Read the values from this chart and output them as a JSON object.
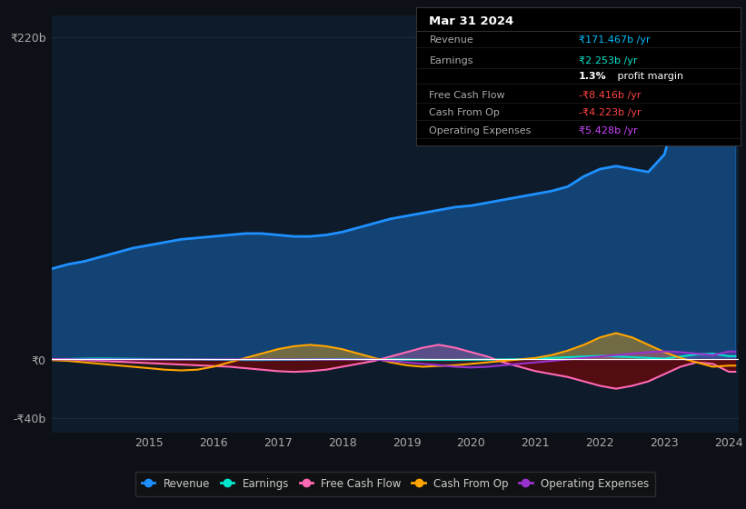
{
  "bg_color": "#0d1117",
  "plot_bg": "#0d1b2a",
  "grid_color": "#1e2d3d",
  "zero_line_color": "#ffffff",
  "years": [
    2013.25,
    2013.5,
    2013.75,
    2014.0,
    2014.25,
    2014.5,
    2014.75,
    2015.0,
    2015.25,
    2015.5,
    2015.75,
    2016.0,
    2016.25,
    2016.5,
    2016.75,
    2017.0,
    2017.25,
    2017.5,
    2017.75,
    2018.0,
    2018.25,
    2018.5,
    2018.75,
    2019.0,
    2019.25,
    2019.5,
    2019.75,
    2020.0,
    2020.25,
    2020.5,
    2020.75,
    2021.0,
    2021.25,
    2021.5,
    2021.75,
    2022.0,
    2022.25,
    2022.5,
    2022.75,
    2023.0,
    2023.25,
    2023.5,
    2023.75,
    2024.0,
    2024.1
  ],
  "revenue": [
    60,
    62,
    65,
    67,
    70,
    73,
    76,
    78,
    80,
    82,
    83,
    84,
    85,
    86,
    86,
    85,
    84,
    84,
    85,
    87,
    90,
    93,
    96,
    98,
    100,
    102,
    104,
    105,
    107,
    109,
    111,
    113,
    115,
    118,
    125,
    130,
    132,
    130,
    128,
    140,
    180,
    220,
    200,
    171,
    171
  ],
  "earnings": [
    0.0,
    0.2,
    0.3,
    0.5,
    0.6,
    0.5,
    0.4,
    0.3,
    0.2,
    0.1,
    0.0,
    -0.2,
    -0.3,
    -0.4,
    -0.4,
    -0.3,
    -0.2,
    0.0,
    0.2,
    0.3,
    0.2,
    0.1,
    0.0,
    -0.1,
    -0.2,
    -0.3,
    -0.3,
    -0.2,
    -0.1,
    0.0,
    0.2,
    0.5,
    1.0,
    1.5,
    2.0,
    2.5,
    2.0,
    1.5,
    1.0,
    0.5,
    2.0,
    3.5,
    4.0,
    2.253,
    2.253
  ],
  "free_cash_flow": [
    0.5,
    0.3,
    0.0,
    -0.5,
    -1.0,
    -1.5,
    -2.0,
    -2.5,
    -3.0,
    -3.5,
    -4.0,
    -4.5,
    -5.0,
    -6.0,
    -7.0,
    -8.0,
    -8.5,
    -8.0,
    -7.0,
    -5.0,
    -3.0,
    -1.0,
    2.0,
    5.0,
    8.0,
    10.0,
    8.0,
    5.0,
    2.0,
    -2.0,
    -5.0,
    -8.0,
    -10.0,
    -12.0,
    -15.0,
    -18.0,
    -20.0,
    -18.0,
    -15.0,
    -10.0,
    -5.0,
    -2.0,
    -3.0,
    -8.416,
    -8.416
  ],
  "cash_from_op": [
    0.0,
    -0.5,
    -1.0,
    -2.0,
    -3.0,
    -4.0,
    -5.0,
    -6.0,
    -7.0,
    -7.5,
    -7.0,
    -5.0,
    -2.0,
    1.0,
    4.0,
    7.0,
    9.0,
    10.0,
    9.0,
    7.0,
    4.0,
    1.0,
    -2.0,
    -4.0,
    -5.0,
    -4.5,
    -4.0,
    -3.0,
    -2.0,
    -1.0,
    0.0,
    1.0,
    3.0,
    6.0,
    10.0,
    15.0,
    18.0,
    15.0,
    10.0,
    5.0,
    1.0,
    -2.0,
    -5.0,
    -4.223,
    -4.223
  ],
  "operating_expenses": [
    0.0,
    0.0,
    0.0,
    0.0,
    0.0,
    0.0,
    0.0,
    0.0,
    0.0,
    0.0,
    0.0,
    0.0,
    0.0,
    0.0,
    0.0,
    0.0,
    0.0,
    0.0,
    0.0,
    0.0,
    0.0,
    0.0,
    -1.0,
    -2.0,
    -3.0,
    -4.0,
    -5.0,
    -5.5,
    -5.0,
    -4.0,
    -3.0,
    -2.0,
    -1.0,
    0.0,
    1.0,
    2.0,
    3.0,
    4.0,
    5.0,
    5.5,
    5.0,
    4.0,
    3.0,
    5.428,
    5.428
  ],
  "revenue_color": "#1e90ff",
  "earnings_color": "#00e5cc",
  "fcf_color": "#ff69b4",
  "cfop_color": "#ffa500",
  "opex_color": "#9932cc",
  "xlim": [
    2013.5,
    2024.15
  ],
  "ylim": [
    -50,
    235
  ],
  "yticks": [
    -40,
    0,
    220
  ],
  "ytick_labels": [
    "-₹40b",
    "₹0",
    "₹220b"
  ],
  "xticks": [
    2015,
    2016,
    2017,
    2018,
    2019,
    2020,
    2021,
    2022,
    2023,
    2024
  ],
  "xtick_labels": [
    "2015",
    "2016",
    "2017",
    "2018",
    "2019",
    "2020",
    "2021",
    "2022",
    "2023",
    "2024"
  ],
  "legend_items": [
    {
      "label": "Revenue",
      "color": "#1e90ff"
    },
    {
      "label": "Earnings",
      "color": "#00e5cc"
    },
    {
      "label": "Free Cash Flow",
      "color": "#ff69b4"
    },
    {
      "label": "Cash From Op",
      "color": "#ffa500"
    },
    {
      "label": "Operating Expenses",
      "color": "#9932cc"
    }
  ],
  "info_box": {
    "date": "Mar 31 2024",
    "rows": [
      {
        "label": "Revenue",
        "value": "₹171.467b /yr",
        "value_color": "#00bfff"
      },
      {
        "label": "Earnings",
        "value": "₹2.253b /yr",
        "value_color": "#00e5cc"
      },
      {
        "label": "",
        "value": "1.3%",
        "value_color": "#ffffff",
        "suffix": " profit margin"
      },
      {
        "label": "Free Cash Flow",
        "value": "-₹8.416b /yr",
        "value_color": "#ff4444"
      },
      {
        "label": "Cash From Op",
        "value": "-₹4.223b /yr",
        "value_color": "#ff4444"
      },
      {
        "label": "Operating Expenses",
        "value": "₹5.428b /yr",
        "value_color": "#cc44ff"
      }
    ]
  }
}
